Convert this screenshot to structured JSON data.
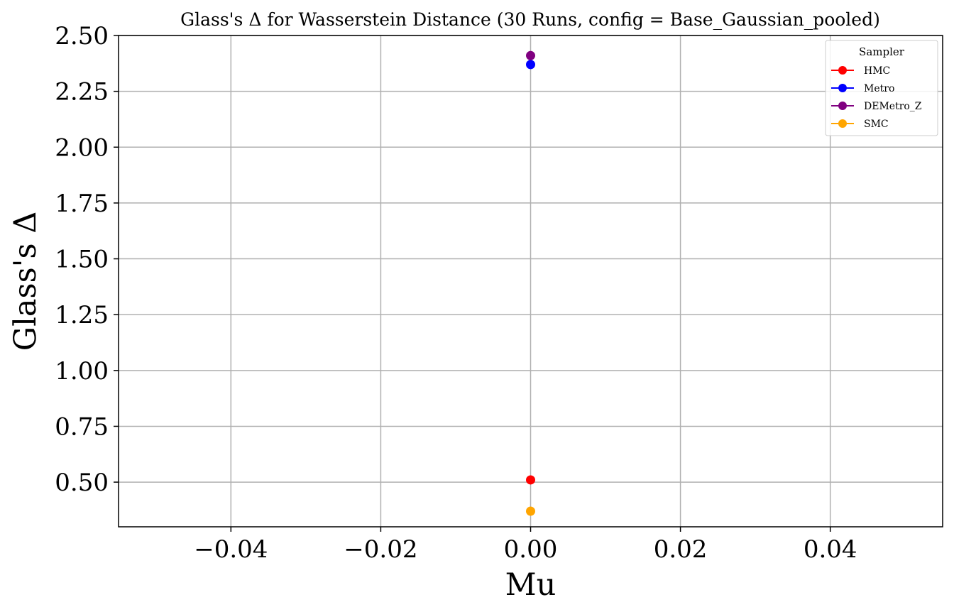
{
  "chart_data": {
    "type": "scatter",
    "title": "Glass's Δ for Wasserstein Distance (30 Runs, config = Base_Gaussian_pooled)",
    "xlabel": "Mu",
    "ylabel": "Glass's Δ",
    "xlim": [
      -0.055,
      0.055
    ],
    "ylim": [
      0.3,
      2.5
    ],
    "xticks": [
      -0.04,
      -0.02,
      0.0,
      0.02,
      0.04
    ],
    "xtick_labels": [
      "−0.04",
      "−0.02",
      "0.00",
      "0.02",
      "0.04"
    ],
    "yticks": [
      0.5,
      0.75,
      1.0,
      1.25,
      1.5,
      1.75,
      2.0,
      2.25,
      2.5
    ],
    "ytick_labels": [
      "0.50",
      "0.75",
      "1.00",
      "1.25",
      "1.50",
      "1.75",
      "2.00",
      "2.25",
      "2.50"
    ],
    "grid": true,
    "legend": {
      "title": "Sampler",
      "placement": "top-right"
    },
    "series": [
      {
        "name": "HMC",
        "color": "#ff0000",
        "x": [
          0.0
        ],
        "y": [
          0.51
        ]
      },
      {
        "name": "Metro",
        "color": "#0000ff",
        "x": [
          0.0
        ],
        "y": [
          2.37
        ]
      },
      {
        "name": "DEMetro_Z",
        "color": "#800080",
        "x": [
          0.0
        ],
        "y": [
          2.41
        ]
      },
      {
        "name": "SMC",
        "color": "#ffa500",
        "x": [
          0.0
        ],
        "y": [
          0.37
        ]
      }
    ]
  }
}
